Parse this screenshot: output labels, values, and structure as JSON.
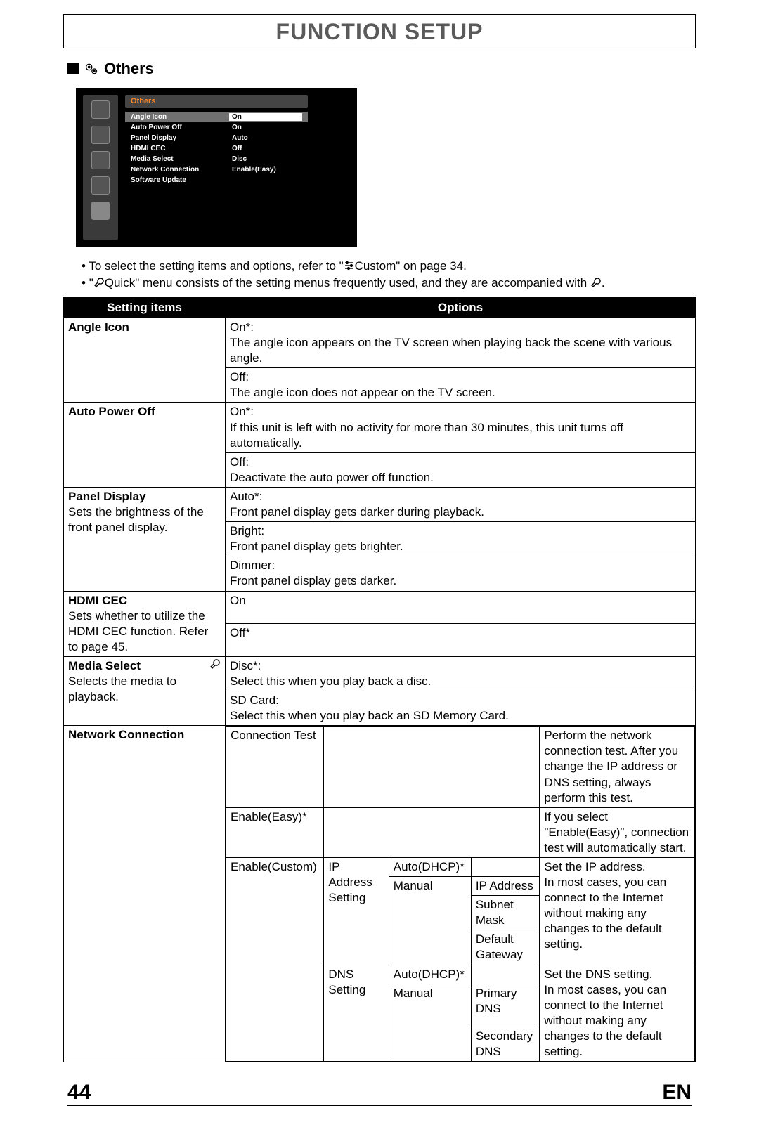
{
  "page_title": "FUNCTION SETUP",
  "section": "Others",
  "screenshot": {
    "tab": "Others",
    "rows": [
      {
        "label": "Angle Icon",
        "value": "On",
        "hl": true
      },
      {
        "label": "Auto Power Off",
        "value": "On"
      },
      {
        "label": "Panel Display",
        "value": "Auto"
      },
      {
        "label": "HDMI CEC",
        "value": "Off"
      },
      {
        "label": "Media Select",
        "value": "Disc"
      },
      {
        "label": "Network Connection",
        "value": "Enable(Easy)"
      },
      {
        "label": "Software Update",
        "value": ""
      }
    ]
  },
  "notes": {
    "n1_pre": "To select the setting items and options, refer to \"",
    "n1_mid": "Custom\" on page 34.",
    "n2_pre": "\"",
    "n2_mid": "Quick\"  menu consists of the setting menus frequently used, and they are accompanied with ",
    "n2_post": "."
  },
  "headers": {
    "c1": "Setting items",
    "c2": "Options"
  },
  "rows": {
    "angle": {
      "label": "Angle Icon",
      "on_title": "On*:",
      "on_desc": "The angle icon appears on the TV screen when playing back the scene with various angle.",
      "off_title": "Off:",
      "off_desc": "The angle icon does not appear on the TV screen."
    },
    "apo": {
      "label": "Auto Power Off",
      "on_title": "On*:",
      "on_desc": "If this unit is left with no activity for more than 30 minutes, this unit turns off automatically.",
      "off_title": "Off:",
      "off_desc": "Deactivate the auto power off function."
    },
    "panel": {
      "label": "Panel Display",
      "sub": "Sets the brightness of the front panel display.",
      "a_title": "Auto*:",
      "a_desc": "Front panel display gets darker during playback.",
      "b_title": "Bright:",
      "b_desc": "Front panel display gets brighter.",
      "c_title": "Dimmer:",
      "c_desc": "Front panel display gets darker."
    },
    "hdmi": {
      "label": "HDMI CEC",
      "sub": "Sets whether to utilize the HDMI CEC function. Refer to page 45.",
      "on": "On",
      "off": "Off*"
    },
    "media": {
      "label": "Media Select",
      "sub": "Selects the media to playback.",
      "d_title": "Disc*:",
      "d_desc": "Select this when you play back a disc.",
      "s_title": "SD Card:",
      "s_desc": "Select this when you play back an SD Memory Card."
    },
    "net": {
      "label": "Network Connection",
      "ct": "Connection Test",
      "ct_desc": "Perform the network connection test. After you change the IP address or DNS setting, always perform this test.",
      "ee": "Enable(Easy)*",
      "ee_desc": "If you select \"Enable(Easy)\", connection test will automatically start.",
      "ec": "Enable(Custom)",
      "ip": "IP Address Setting",
      "dns": "DNS Setting",
      "auto": "Auto(DHCP)*",
      "manual": "Manual",
      "ip_f1": "IP Address",
      "ip_f2": "Subnet Mask",
      "ip_f3": "Default Gateway",
      "dns_f1": "Primary DNS",
      "dns_f2": "Secondary DNS",
      "ip_desc": "Set the IP address.\nIn most cases, you can connect to the Internet without making any changes to the default setting.",
      "dns_desc": "Set the DNS setting.\nIn most cases, you can connect to the Internet without making any changes to the default setting."
    }
  },
  "footer": {
    "page": "44",
    "lang": "EN"
  }
}
